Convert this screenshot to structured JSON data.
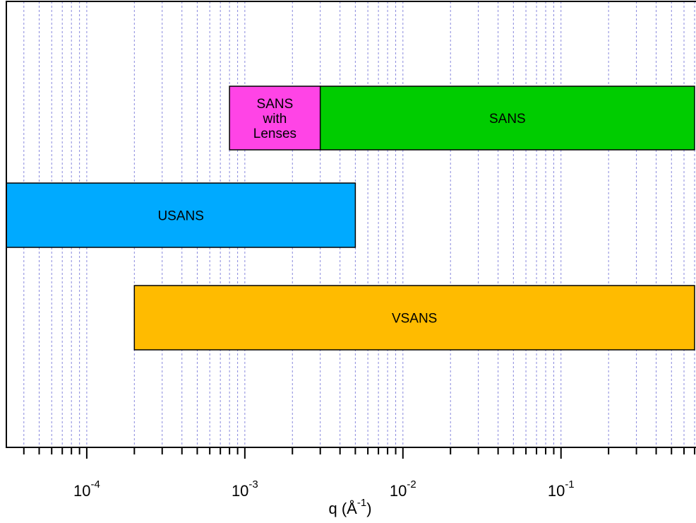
{
  "chart_data": {
    "type": "bar",
    "orientation": "horizontal-range",
    "x_scale": "log",
    "xlim": [
      3.1e-05,
      0.7
    ],
    "grid": true,
    "xlabel": {
      "base": "q (Å",
      "exponent": "-1",
      "close": ")"
    },
    "x_ticks": [
      {
        "base": "10",
        "exponent": "-4",
        "value": 0.0001
      },
      {
        "base": "10",
        "exponent": "-3",
        "value": 0.001
      },
      {
        "base": "10",
        "exponent": "-2",
        "value": 0.01
      },
      {
        "base": "10",
        "exponent": "-1",
        "value": 0.1
      }
    ],
    "bars": [
      {
        "label": [
          "SANS",
          "with",
          "Lenses"
        ],
        "x_start": 0.0008,
        "x_end": 0.003,
        "color": "#ff44e6"
      },
      {
        "label": [
          "SANS"
        ],
        "x_start": 0.003,
        "x_end": 0.7,
        "color": "#00cc00"
      },
      {
        "label": [
          "USANS"
        ],
        "x_start": 3.1e-05,
        "x_end": 0.005,
        "color": "#00aaff"
      },
      {
        "label": [
          "VSANS"
        ],
        "x_start": 0.0002,
        "x_end": 0.7,
        "color": "#ffbb00"
      }
    ]
  }
}
